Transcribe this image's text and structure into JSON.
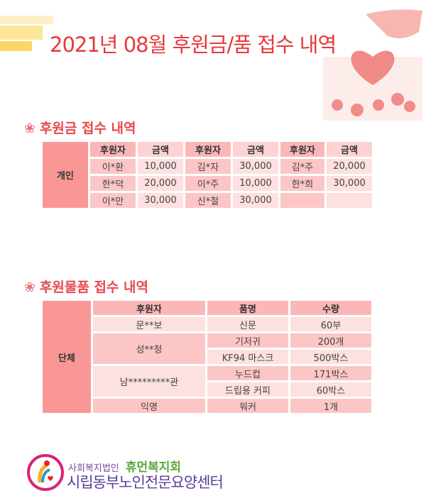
{
  "title": "2021년 08월 후원금/품 접수 내역",
  "colors": {
    "title": "#e8383d",
    "label": "#f99797",
    "header": "#fbb7b7",
    "dark_cell": "#fcc6c6",
    "light_cell": "#fde0e0"
  },
  "money": {
    "heading": "후원금 접수 내역",
    "group": "개인",
    "headers": [
      "후원자",
      "금액",
      "후원자",
      "금액",
      "후원자",
      "금액"
    ],
    "rows": [
      [
        "이*환",
        "10,000",
        "김*자",
        "30,000",
        "김*주",
        "20,000"
      ],
      [
        "한*덕",
        "20,000",
        "이*주",
        "10,000",
        "한*희",
        "30,000"
      ],
      [
        "이*만",
        "30,000",
        "신*철",
        "30,000",
        "",
        ""
      ]
    ]
  },
  "goods": {
    "heading": "후원물품 접수 내역",
    "group": "단체",
    "headers": [
      "후원자",
      "품명",
      "수량"
    ],
    "donors": [
      "문**보",
      "성**청",
      "남*********관",
      "익명"
    ],
    "items": [
      [
        "신문",
        "60부"
      ],
      [
        "기저귀",
        "200개"
      ],
      [
        "KF94 마스크",
        "500박스"
      ],
      [
        "누드컵",
        "171박스"
      ],
      [
        "드립용 커피",
        "60박스"
      ],
      [
        "워커",
        "1개"
      ]
    ]
  },
  "logo": {
    "line1": "사회복지법인",
    "name": "휴먼복지회",
    "line2": "시립동부노인전문요양센터"
  }
}
